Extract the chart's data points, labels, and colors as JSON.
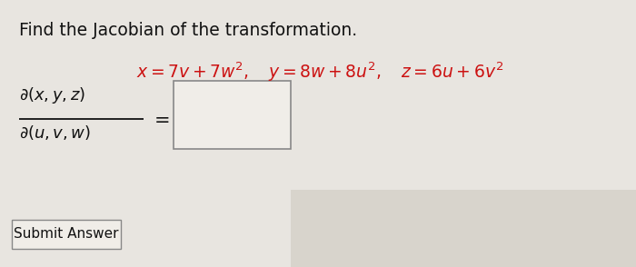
{
  "bg_color": "#e8e5e0",
  "title_text": "Find the Jacobian of the transformation.",
  "title_color": "#111111",
  "title_fontsize": 13.5,
  "equation_color": "#cc1111",
  "equation_fontsize": 13.5,
  "jacobian_color": "#111111",
  "jacobian_fontsize": 13,
  "box_facecolor": "#f0ede8",
  "box_edgecolor": "#888888",
  "submit_text": "Submit Answer",
  "submit_fontsize": 11,
  "submit_facecolor": "#f0ede8",
  "submit_edgecolor": "#888888"
}
